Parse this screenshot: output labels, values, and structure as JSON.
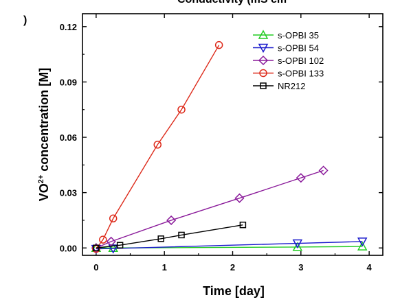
{
  "chart_data": {
    "type": "line",
    "title": "Conductivity (mS cm",
    "xlabel": "Time [day]",
    "ylabel_main": "VO",
    "ylabel_sup": "2+",
    "ylabel_rest": " concentration [M]",
    "xlim": [
      -0.2,
      4.2
    ],
    "ylim": [
      -0.004,
      0.127
    ],
    "xticks": [
      0,
      1,
      2,
      3,
      4
    ],
    "xtick_labels": [
      "0",
      "1",
      "2",
      "3",
      "4"
    ],
    "yticks": [
      0.0,
      0.03,
      0.06,
      0.09,
      0.12
    ],
    "ytick_labels": [
      "0.00",
      "0.03",
      "0.06",
      "0.09",
      "0.12"
    ],
    "grid": false,
    "legend_position": "top-right",
    "series": [
      {
        "name": "s-OPBI 35",
        "marker": "triangle-up",
        "color": "#22cc22",
        "x": [
          0,
          0.25,
          2.95,
          3.9
        ],
        "y": [
          0.0,
          0.0,
          0.0005,
          0.0008
        ]
      },
      {
        "name": "s-OPBI 54",
        "marker": "triangle-down",
        "color": "#1a1acc",
        "x": [
          0,
          0.25,
          2.95,
          3.9
        ],
        "y": [
          -0.0005,
          -0.0003,
          0.0025,
          0.0035
        ]
      },
      {
        "name": "s-OPBI 102",
        "marker": "diamond",
        "color": "#8a1a9a",
        "x": [
          0,
          0.22,
          1.1,
          2.1,
          3.0,
          3.33
        ],
        "y": [
          0.0,
          0.0035,
          0.015,
          0.027,
          0.038,
          0.042
        ]
      },
      {
        "name": "s-OPBI 133",
        "marker": "circle",
        "color": "#dd2a1a",
        "x": [
          0,
          0.1,
          0.25,
          0.9,
          1.25,
          1.8
        ],
        "y": [
          -0.0005,
          0.0045,
          0.016,
          0.056,
          0.075,
          0.11
        ]
      },
      {
        "name": "NR212",
        "marker": "square",
        "color": "#000000",
        "x": [
          0,
          0.35,
          0.95,
          1.25,
          2.15
        ],
        "y": [
          0.0,
          0.0015,
          0.005,
          0.007,
          0.0125
        ]
      }
    ]
  }
}
